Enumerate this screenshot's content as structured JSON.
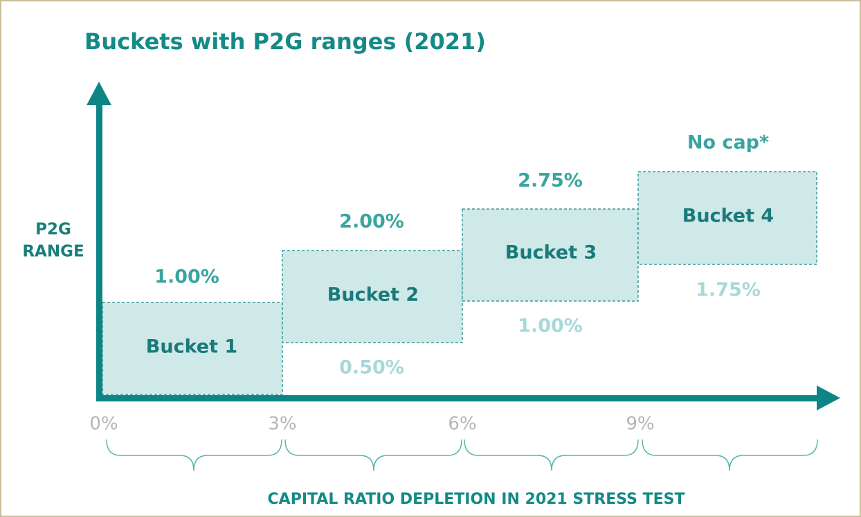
{
  "title": "Buckets with P2G ranges (2021)",
  "y_axis_label": [
    "P2G",
    "RANGE"
  ],
  "x_axis_label": "CAPITAL RATIO DEPLETION IN 2021 STRESS TEST",
  "x_ticks": [
    "0%",
    "3%",
    "6%",
    "9%"
  ],
  "buckets": [
    {
      "name": "Bucket 1",
      "upper": "1.00%"
    },
    {
      "name": "Bucket 2",
      "upper": "2.00%",
      "lower": "0.50%"
    },
    {
      "name": "Bucket 3",
      "upper": "2.75%",
      "lower": "1.00%"
    },
    {
      "name": "Bucket 4",
      "upper": "No cap*",
      "lower": "1.75%"
    }
  ]
}
